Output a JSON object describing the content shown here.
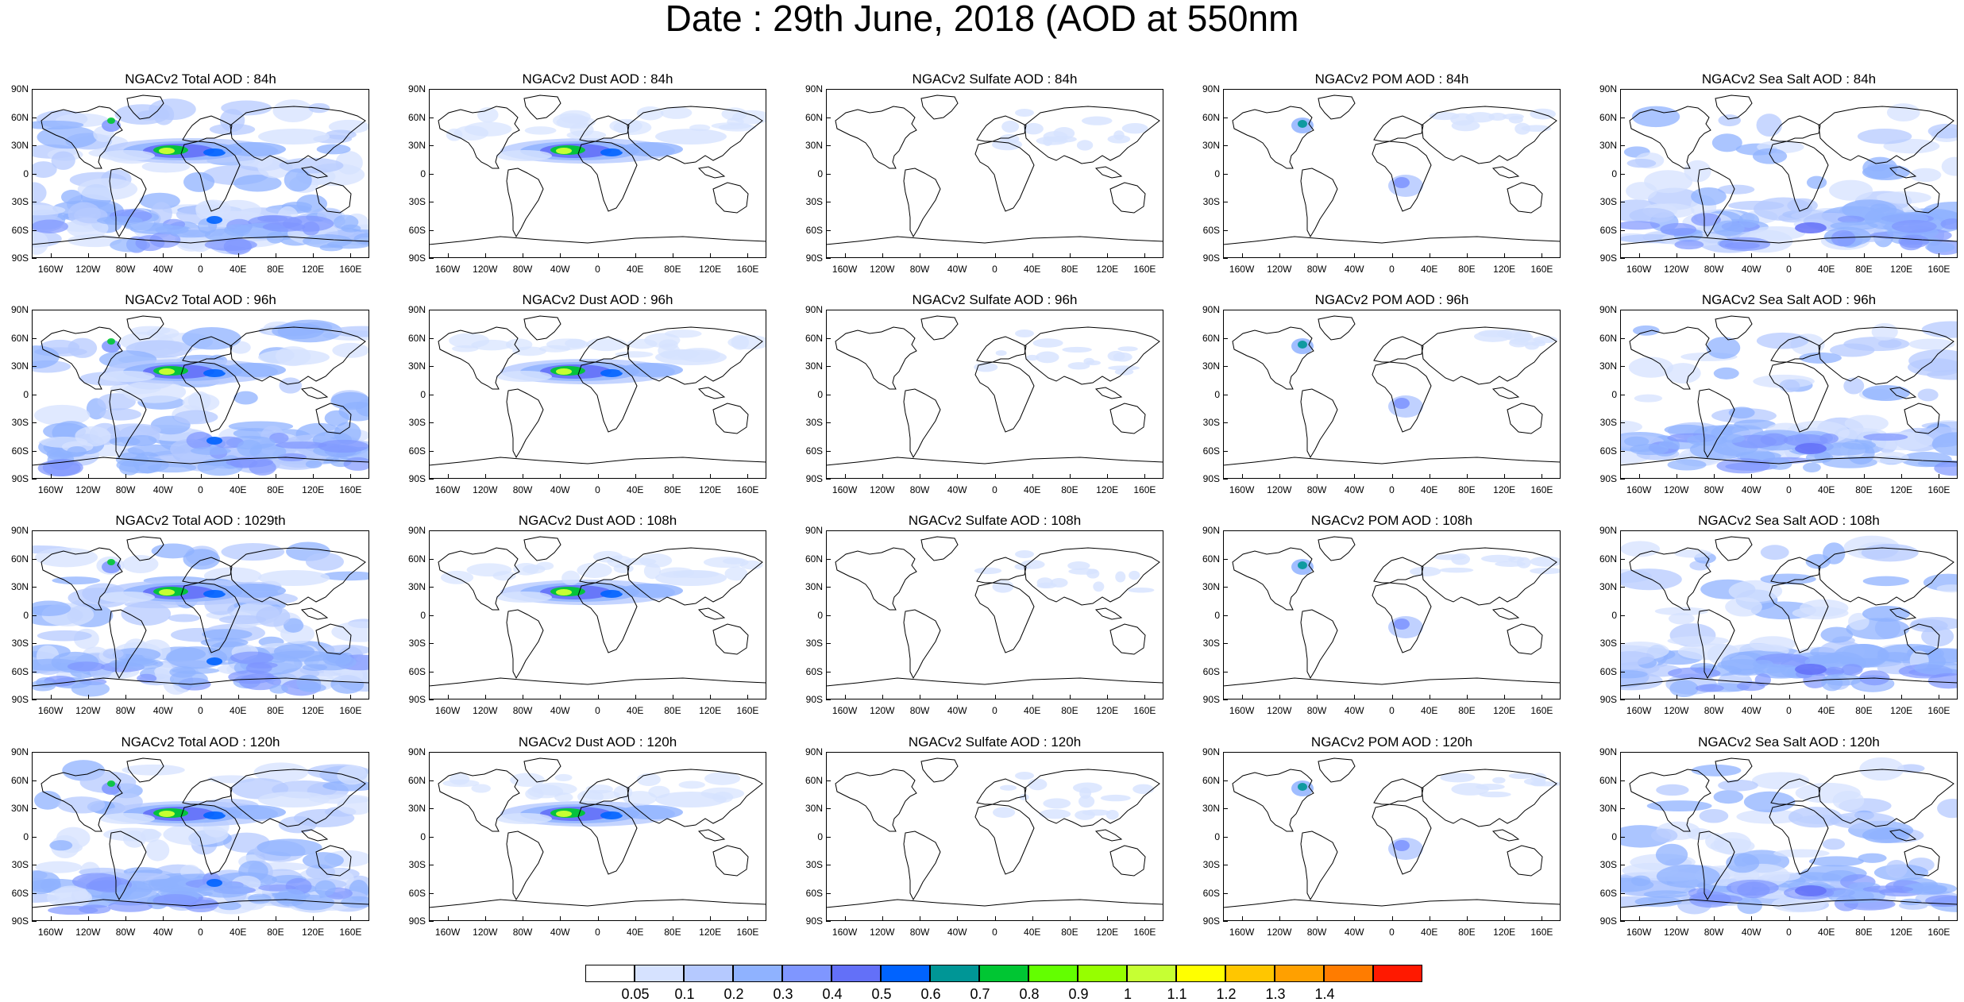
{
  "title": "Date : 29th June, 2018 (AOD at 550nm",
  "lat_labels": [
    "90N",
    "60N",
    "30N",
    "0",
    "30S",
    "60S",
    "90S"
  ],
  "lon_labels": [
    "160W",
    "120W",
    "80W",
    "40W",
    "0",
    "40E",
    "80E",
    "120E",
    "160E"
  ],
  "lon_values": [
    -160,
    -120,
    -80,
    -40,
    0,
    40,
    80,
    120,
    160
  ],
  "lat_values": [
    90,
    60,
    30,
    0,
    -30,
    -60,
    -90
  ],
  "panels": [
    {
      "title": "NGACv2 Total AOD : 84h",
      "type": "total"
    },
    {
      "title": "NGACv2 Dust AOD : 84h",
      "type": "dust"
    },
    {
      "title": "NGACv2 Sulfate AOD : 84h",
      "type": "sulfate"
    },
    {
      "title": "NGACv2 POM AOD : 84h",
      "type": "pom"
    },
    {
      "title": "NGACv2 Sea Salt AOD : 84h",
      "type": "seasalt"
    },
    {
      "title": "NGACv2 Total AOD : 96h",
      "type": "total"
    },
    {
      "title": "NGACv2 Dust AOD : 96h",
      "type": "dust"
    },
    {
      "title": "NGACv2 Sulfate AOD : 96h",
      "type": "sulfate"
    },
    {
      "title": "NGACv2 POM AOD : 96h",
      "type": "pom"
    },
    {
      "title": "NGACv2 Sea Salt AOD : 96h",
      "type": "seasalt"
    },
    {
      "title": "NGACv2 Total AOD : 1029th",
      "type": "total"
    },
    {
      "title": "NGACv2 Dust AOD : 108h",
      "type": "dust"
    },
    {
      "title": "NGACv2 Sulfate AOD : 108h",
      "type": "sulfate"
    },
    {
      "title": "NGACv2 POM AOD : 108h",
      "type": "pom"
    },
    {
      "title": "NGACv2 Sea Salt AOD : 108h",
      "type": "seasalt"
    },
    {
      "title": "NGACv2 Total AOD : 120h",
      "type": "total"
    },
    {
      "title": "NGACv2 Dust AOD : 120h",
      "type": "dust"
    },
    {
      "title": "NGACv2 Sulfate AOD : 120h",
      "type": "sulfate"
    },
    {
      "title": "NGACv2 POM AOD : 120h",
      "type": "pom"
    },
    {
      "title": "NGACv2 Sea Salt  AOD : 120h",
      "type": "seasalt"
    }
  ],
  "colorbar": {
    "labels": [
      "0.05",
      "0.1",
      "0.2",
      "0.3",
      "0.4",
      "0.5",
      "0.6",
      "0.7",
      "0.8",
      "0.9",
      "1",
      "1.1",
      "1.2",
      "1.3",
      "1.4"
    ],
    "colors": [
      "#ffffff",
      "#d6e2ff",
      "#b5c9ff",
      "#8fb2ff",
      "#7f96ff",
      "#6370f8",
      "#0063ff",
      "#009696",
      "#00c633",
      "#63ff00",
      "#96ff00",
      "#c6ff33",
      "#ffff00",
      "#ffc600",
      "#ffa000",
      "#ff7c00",
      "#ff1900"
    ]
  }
}
